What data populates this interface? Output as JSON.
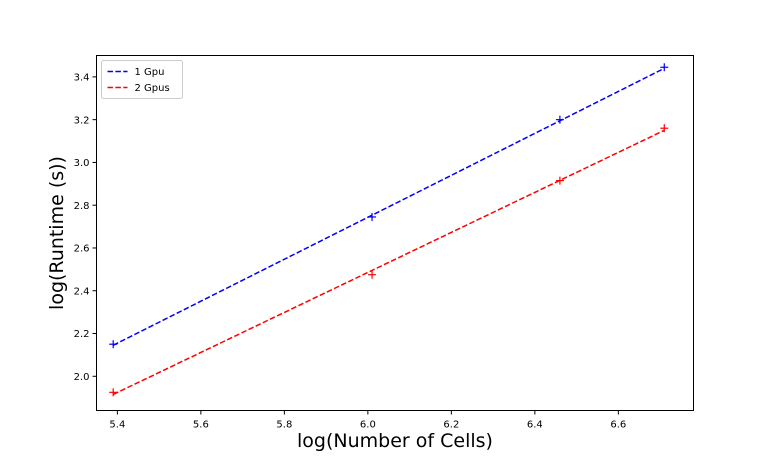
{
  "chart_data": {
    "type": "line",
    "title": "",
    "xlabel": "log(Number of Cells)",
    "ylabel": "log(Runtime (s))",
    "xlim": [
      5.35,
      6.78
    ],
    "ylim": [
      1.84,
      3.5
    ],
    "xticks": [
      5.4,
      5.6,
      5.8,
      6.0,
      6.2,
      6.4,
      6.6
    ],
    "yticks": [
      2.0,
      2.2,
      2.4,
      2.6,
      2.8,
      3.0,
      3.2,
      3.4
    ],
    "grid": false,
    "legend_position": "top-left",
    "series": [
      {
        "name": "1 Gpu",
        "color": "#0000ff",
        "linestyle": "dashed",
        "marker": "+",
        "fit_line": {
          "x": [
            5.39,
            6.71
          ],
          "y": [
            2.145,
            3.44
          ]
        },
        "points": {
          "x": [
            5.39,
            6.01,
            6.46,
            6.71
          ],
          "y": [
            2.15,
            2.745,
            3.2,
            3.445
          ]
        }
      },
      {
        "name": "2 Gpus",
        "color": "#ff0000",
        "linestyle": "dashed",
        "marker": "+",
        "fit_line": {
          "x": [
            5.39,
            6.71
          ],
          "y": [
            1.915,
            3.15
          ]
        },
        "points": {
          "x": [
            5.39,
            6.01,
            6.46,
            6.71
          ],
          "y": [
            1.925,
            2.475,
            2.915,
            3.16
          ]
        }
      }
    ]
  }
}
